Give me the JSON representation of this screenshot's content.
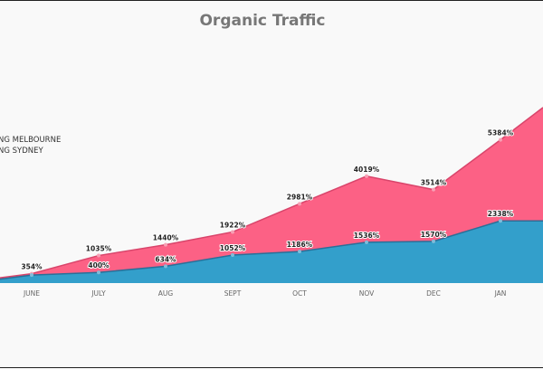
{
  "chart_data": {
    "type": "area",
    "title": "Organic Traffic",
    "categories": [
      "JUNE",
      "JULY",
      "AUG",
      "SEPT",
      "OCT",
      "NOV",
      "DEC",
      "JAN"
    ],
    "series": [
      {
        "name": "NG MELBOURNE",
        "color": "#fc6185",
        "values": [
          354,
          1035,
          1440,
          1922,
          2981,
          4019,
          3514,
          5384
        ],
        "labels": [
          "354%",
          "1035%",
          "1440%",
          "1922%",
          "2981%",
          "4019%",
          "3514%",
          "5384%"
        ]
      },
      {
        "name": "NG SYDNEY",
        "color": "#339fcb",
        "values": [
          300,
          400,
          634,
          1052,
          1186,
          1536,
          1570,
          2338
        ],
        "labels": [
          "",
          "400%",
          "634%",
          "1052%",
          "1186%",
          "1536%",
          "1570%",
          "2338%"
        ]
      }
    ],
    "legend": "top-left",
    "grid": false
  }
}
